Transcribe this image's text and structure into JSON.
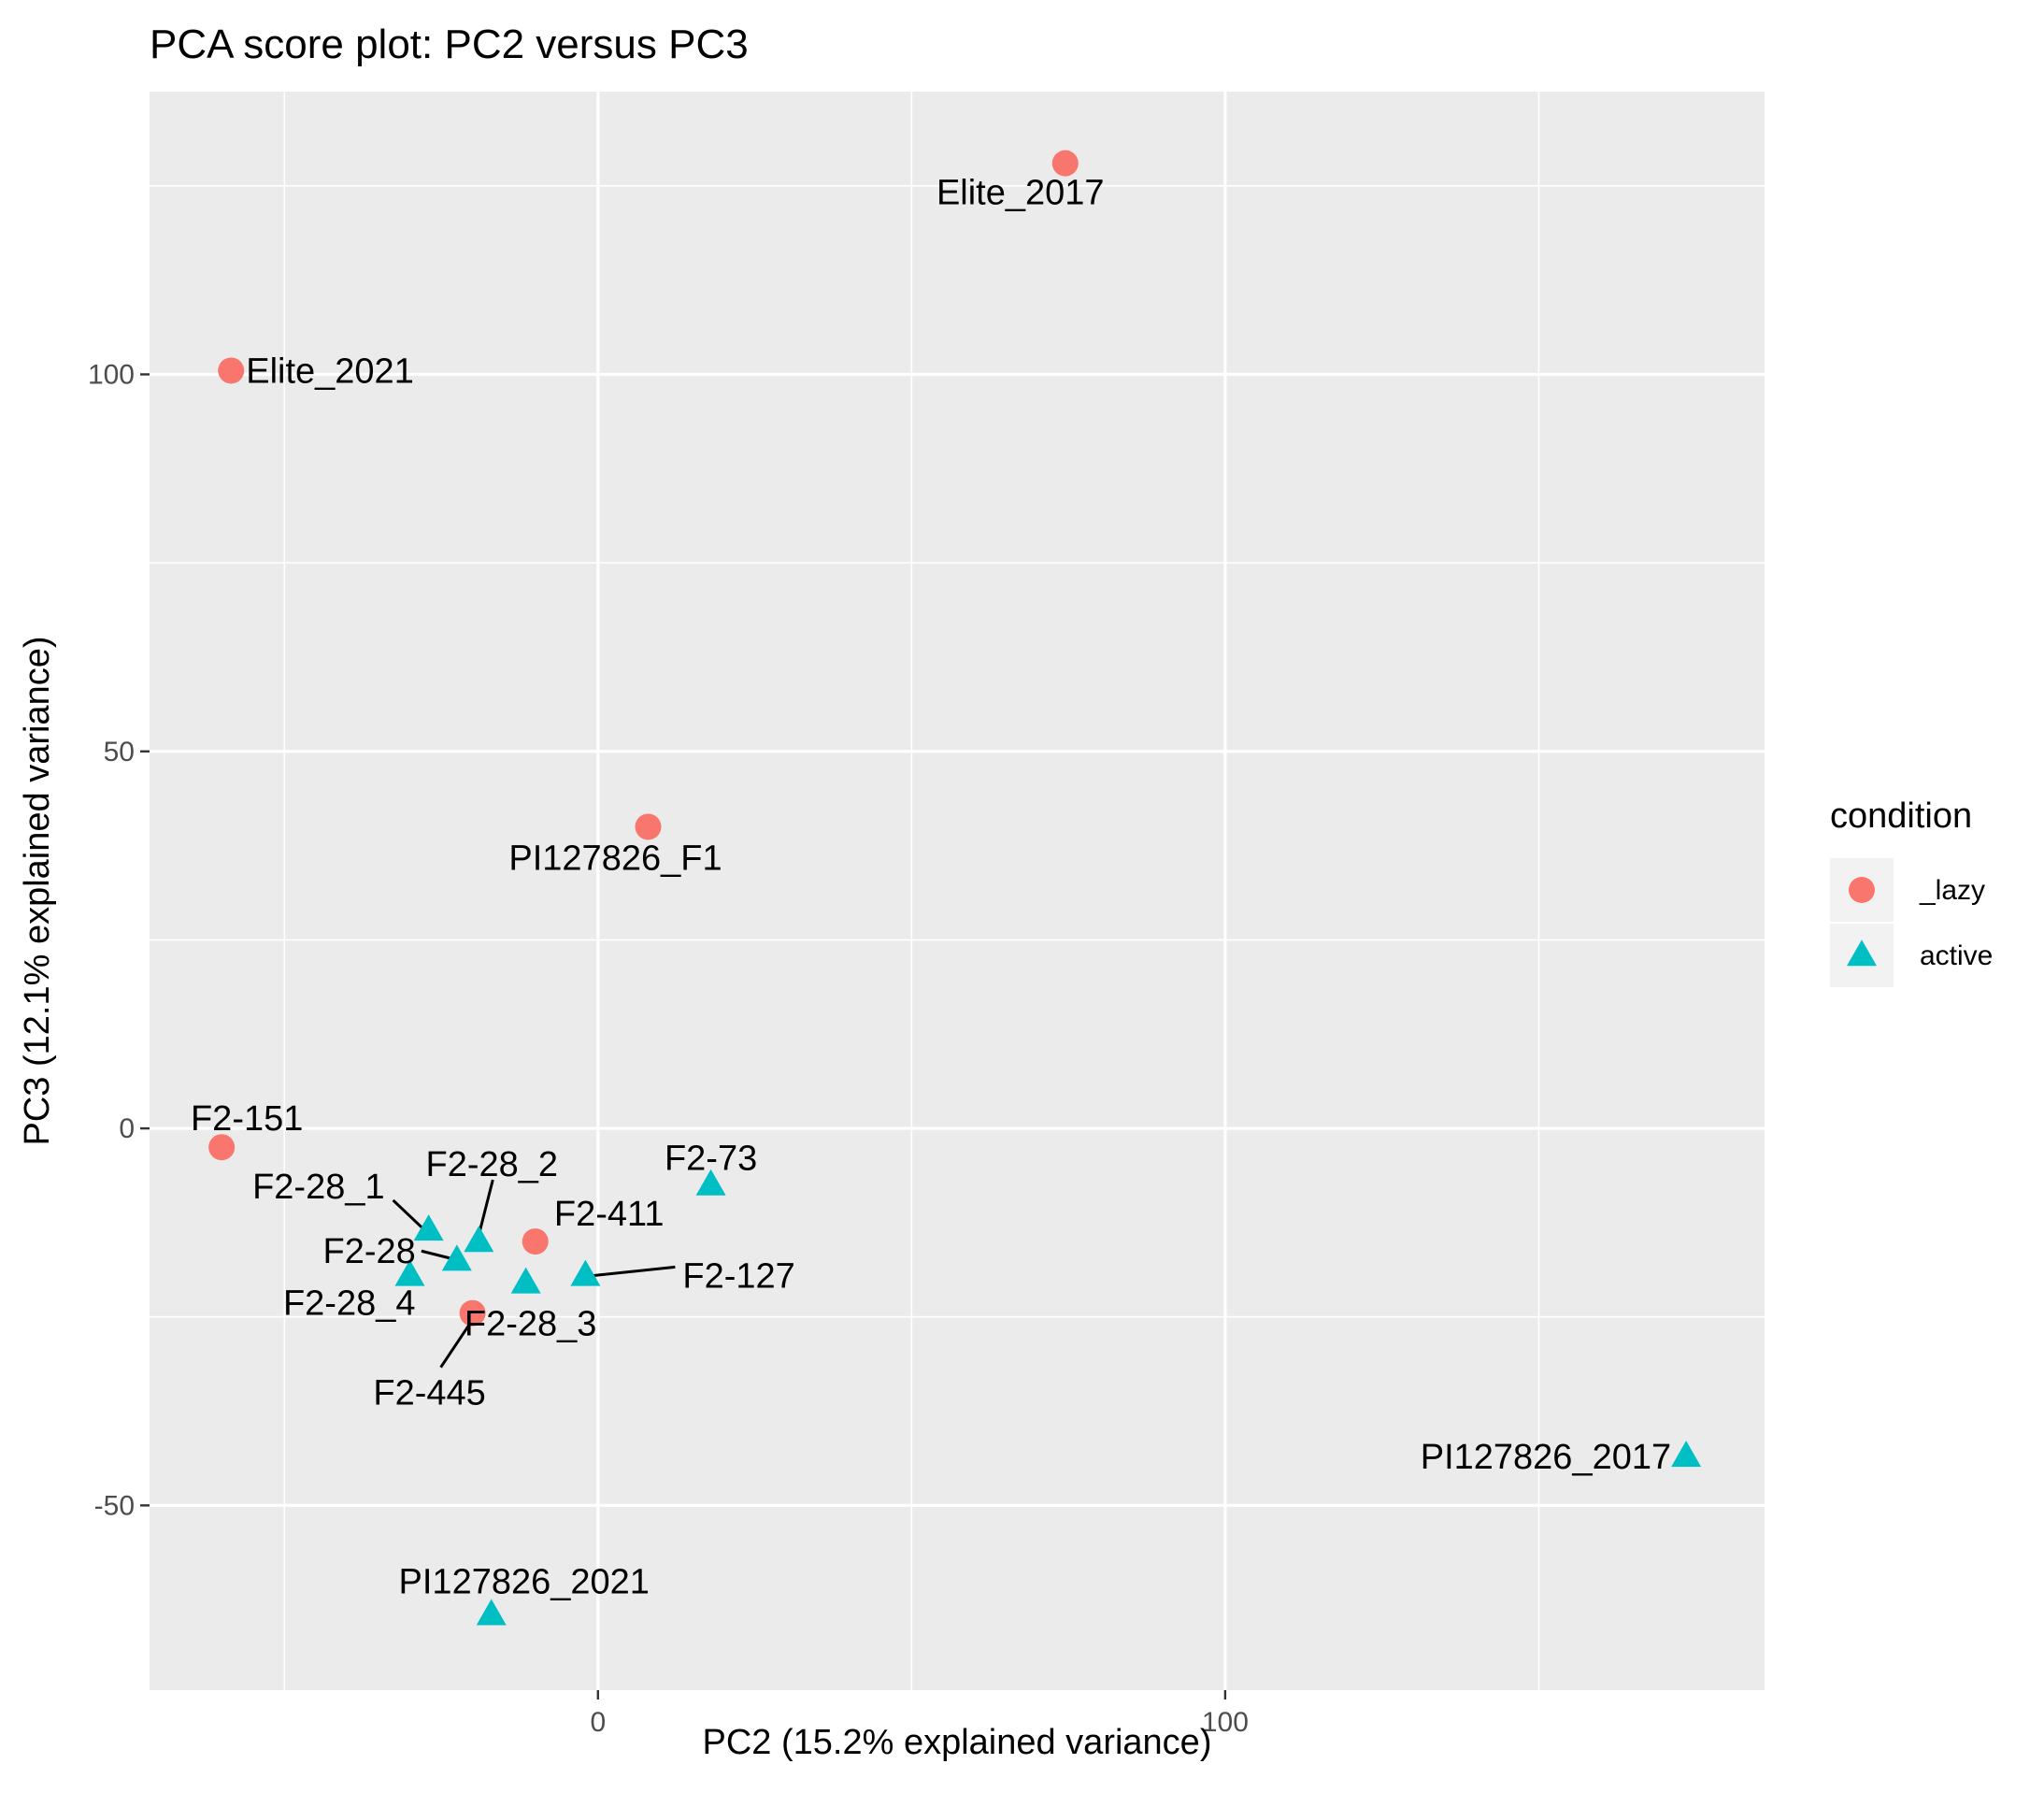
{
  "chart_data": {
    "type": "scatter",
    "title": "PCA score plot: PC2 versus PC3",
    "xlabel": "PC2 (15.2% explained variance)",
    "ylabel": "PC3 (12.1% explained variance)",
    "xlim": [
      -71.5,
      186
    ],
    "ylim": [
      -74.5,
      137.5
    ],
    "x_ticks": [
      0,
      100
    ],
    "x_tick_labels": [
      "0",
      "100"
    ],
    "y_ticks": [
      -50,
      0,
      50,
      100
    ],
    "y_tick_labels": [
      "-50",
      "0",
      "50",
      "100"
    ],
    "grid": true,
    "legend": {
      "title": "condition",
      "placement": "right",
      "entries": [
        {
          "label": "_lazy",
          "shape": "circle",
          "color": "#F8766D"
        },
        {
          "label": "active",
          "shape": "triangle",
          "color": "#00BFC4"
        }
      ]
    },
    "series": [
      {
        "name": "_lazy",
        "shape": "circle",
        "color": "#F8766D",
        "points": [
          {
            "label": "Elite_2017",
            "x": 74.5,
            "y": 128
          },
          {
            "label": "Elite_2021",
            "x": -58.5,
            "y": 100.5
          },
          {
            "label": "PI127826_F1",
            "x": 8,
            "y": 40
          },
          {
            "label": "F2-151",
            "x": -60,
            "y": -2.5
          },
          {
            "label": "F2-411",
            "x": -10,
            "y": -15
          },
          {
            "label": "F2-445",
            "x": -20,
            "y": -24.5
          }
        ]
      },
      {
        "name": "active",
        "shape": "triangle",
        "color": "#00BFC4",
        "points": [
          {
            "label": "F2-73",
            "x": 18,
            "y": -7.5
          },
          {
            "label": "F2-28_1",
            "x": -27,
            "y": -13.5
          },
          {
            "label": "F2-28_2",
            "x": -19,
            "y": -15
          },
          {
            "label": "F2-28",
            "x": -22.5,
            "y": -17.5
          },
          {
            "label": "F2-28_4",
            "x": -30,
            "y": -19.5
          },
          {
            "label": "F2-28_3",
            "x": -11.5,
            "y": -20.5
          },
          {
            "label": "F2-127",
            "x": -2,
            "y": -19.5
          },
          {
            "label": "PI127826_2017",
            "x": 173.5,
            "y": -43.5
          },
          {
            "label": "PI127826_2021",
            "x": -17,
            "y": -64.5
          }
        ]
      }
    ]
  }
}
